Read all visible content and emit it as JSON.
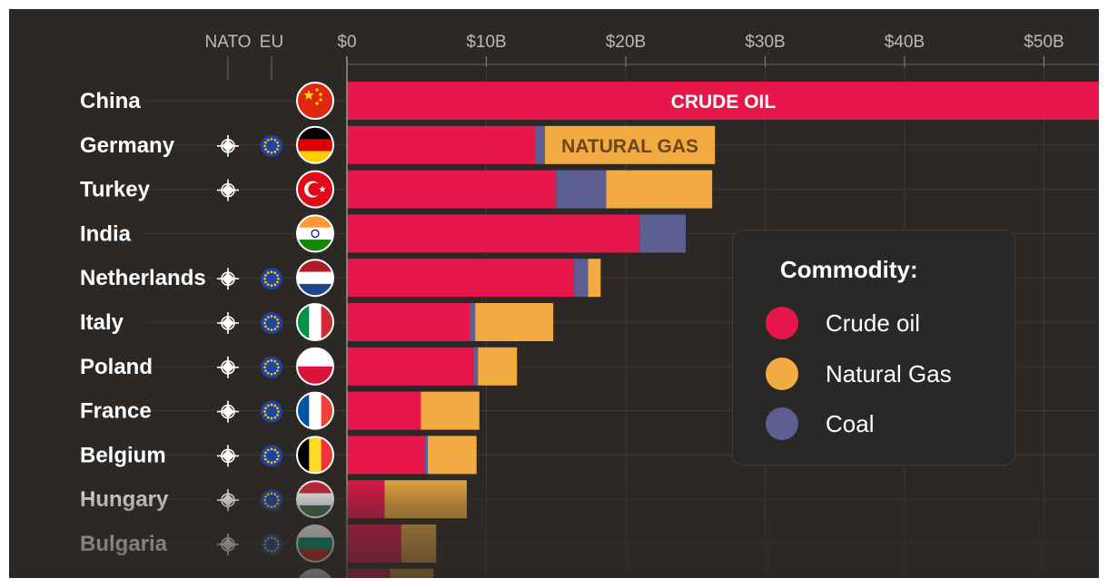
{
  "chart_data": {
    "type": "bar",
    "stacked": true,
    "orientation": "horizontal",
    "x_ticks": [
      "$0",
      "$10B",
      "$20B",
      "$30B",
      "$40B",
      "$50B"
    ],
    "xlim": [
      0,
      54
    ],
    "column_headers": {
      "nato": "NATO",
      "eu": "EU"
    },
    "legend": {
      "title": "Commodity:",
      "placement": "right"
    },
    "series": [
      {
        "name": "Crude oil",
        "color": "#e8174b"
      },
      {
        "name": "Coal",
        "color": "#5d5f93"
      },
      {
        "name": "Natural Gas",
        "color": "#f2ab43"
      }
    ],
    "bar_annotations": [
      {
        "text": "CRUDE OIL",
        "row": 0,
        "series": "Crude oil",
        "color": "#ffffff"
      },
      {
        "text": "NATURAL GAS",
        "row": 1,
        "series": "Natural Gas",
        "color": "#6b4616"
      }
    ],
    "rows": [
      {
        "country": "China",
        "nato": false,
        "eu": false,
        "crude_oil": 54.0,
        "coal": 0.0,
        "natural_gas": 0.0,
        "faded": false,
        "flag": "china"
      },
      {
        "country": "Germany",
        "nato": true,
        "eu": true,
        "crude_oil": 13.5,
        "coal": 0.7,
        "natural_gas": 12.2,
        "faded": false,
        "flag": "germany"
      },
      {
        "country": "Turkey",
        "nato": true,
        "eu": false,
        "crude_oil": 15.0,
        "coal": 3.6,
        "natural_gas": 7.6,
        "faded": false,
        "flag": "turkey"
      },
      {
        "country": "India",
        "nato": false,
        "eu": false,
        "crude_oil": 21.0,
        "coal": 3.3,
        "natural_gas": 0.0,
        "faded": false,
        "flag": "india"
      },
      {
        "country": "Netherlands",
        "nato": true,
        "eu": true,
        "crude_oil": 16.3,
        "coal": 1.0,
        "natural_gas": 0.9,
        "faded": false,
        "flag": "netherlands"
      },
      {
        "country": "Italy",
        "nato": true,
        "eu": true,
        "crude_oil": 8.8,
        "coal": 0.4,
        "natural_gas": 5.6,
        "faded": false,
        "flag": "italy"
      },
      {
        "country": "Poland",
        "nato": true,
        "eu": true,
        "crude_oil": 9.1,
        "coal": 0.3,
        "natural_gas": 2.8,
        "faded": false,
        "flag": "poland"
      },
      {
        "country": "France",
        "nato": true,
        "eu": true,
        "crude_oil": 5.3,
        "coal": 0.0,
        "natural_gas": 4.2,
        "faded": false,
        "flag": "france"
      },
      {
        "country": "Belgium",
        "nato": true,
        "eu": true,
        "crude_oil": 5.6,
        "coal": 0.2,
        "natural_gas": 3.5,
        "faded": false,
        "flag": "belgium"
      },
      {
        "country": "Hungary",
        "nato": true,
        "eu": true,
        "crude_oil": 2.7,
        "coal": 0.0,
        "natural_gas": 5.9,
        "faded": true,
        "flag": "hungary"
      },
      {
        "country": "Bulgaria",
        "nato": true,
        "eu": true,
        "crude_oil": 3.9,
        "coal": 0.0,
        "natural_gas": 2.5,
        "faded": true,
        "flag": "bulgaria"
      },
      {
        "country": "",
        "nato": true,
        "eu": true,
        "crude_oil": 3.1,
        "coal": 0.0,
        "natural_gas": 3.1,
        "faded": true,
        "flag": "slovakia"
      }
    ]
  }
}
